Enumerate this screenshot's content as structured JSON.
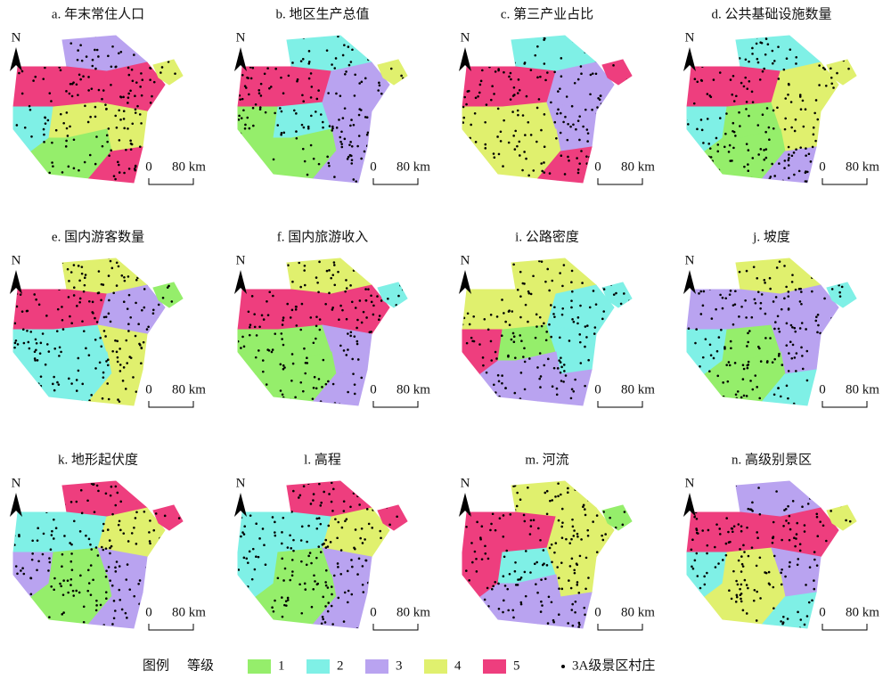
{
  "panels": [
    {
      "title": "a. 年末常住人口",
      "classes": [
        3,
        5,
        5,
        2,
        4,
        4,
        1,
        5,
        4
      ]
    },
    {
      "title": "b. 地区生产总值",
      "classes": [
        2,
        5,
        3,
        1,
        2,
        3,
        1,
        3,
        4
      ]
    },
    {
      "title": "c. 第三产业占比",
      "classes": [
        2,
        5,
        3,
        4,
        4,
        3,
        4,
        5,
        5
      ]
    },
    {
      "title": "d. 公共基础设施数量",
      "classes": [
        2,
        5,
        4,
        2,
        1,
        4,
        1,
        3,
        4
      ]
    },
    {
      "title": "e. 国内游客数量",
      "classes": [
        4,
        5,
        3,
        2,
        2,
        4,
        2,
        4,
        1
      ]
    },
    {
      "title": "f. 国内旅游收入",
      "classes": [
        4,
        5,
        5,
        1,
        1,
        3,
        1,
        3,
        2
      ]
    },
    {
      "title": "i. 公路密度",
      "classes": [
        4,
        4,
        2,
        5,
        1,
        2,
        3,
        3,
        2
      ]
    },
    {
      "title": "j. 坡度",
      "classes": [
        4,
        3,
        3,
        2,
        1,
        3,
        1,
        2,
        2
      ]
    },
    {
      "title": "k. 地形起伏度",
      "classes": [
        5,
        2,
        4,
        3,
        1,
        3,
        1,
        3,
        5
      ]
    },
    {
      "title": "l. 高程",
      "classes": [
        5,
        2,
        4,
        2,
        1,
        3,
        1,
        3,
        5
      ]
    },
    {
      "title": "m. 河流",
      "classes": [
        4,
        5,
        4,
        5,
        2,
        4,
        3,
        3,
        1
      ]
    },
    {
      "title": "n. 高级别景区",
      "classes": [
        3,
        5,
        5,
        2,
        4,
        3,
        4,
        2,
        4
      ]
    }
  ],
  "north": "N",
  "scale": {
    "zero": "0",
    "length": "80 km"
  },
  "legend": {
    "title": "图例",
    "subtitle": "等级",
    "classes": [
      {
        "label": "1",
        "color": "#95ee6b"
      },
      {
        "label": "2",
        "color": "#7ff0e6"
      },
      {
        "label": "3",
        "color": "#b9a3f0"
      },
      {
        "label": "4",
        "color": "#e0f06e"
      },
      {
        "label": "5",
        "color": "#ee3e7e"
      }
    ],
    "point": "3A级景区村庄"
  }
}
